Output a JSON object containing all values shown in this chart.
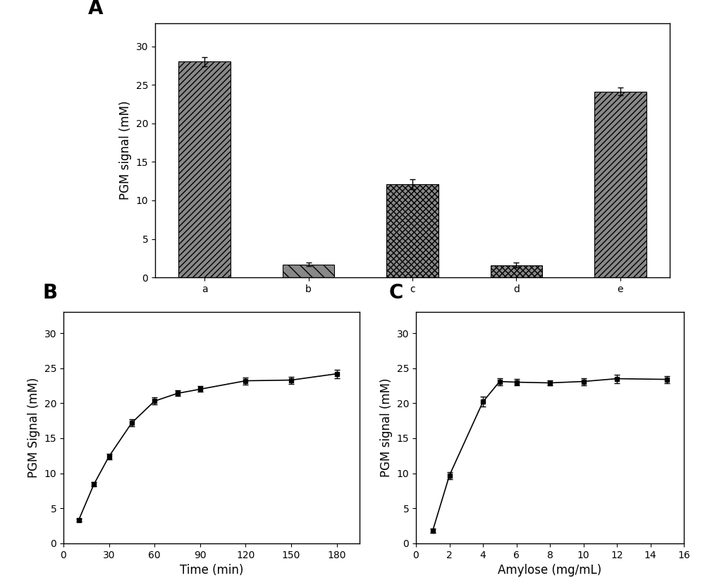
{
  "panel_A": {
    "categories": [
      "a",
      "b",
      "c",
      "d",
      "e"
    ],
    "values": [
      28.0,
      1.7,
      12.1,
      1.6,
      24.1
    ],
    "errors": [
      0.6,
      0.2,
      0.6,
      0.3,
      0.5
    ],
    "hatch_patterns": [
      "////",
      "\\\\",
      "xxxx",
      "xxxx",
      "////"
    ],
    "ylabel": "PGM signal (mM)",
    "ylim": [
      0,
      33
    ],
    "yticks": [
      0,
      5,
      10,
      15,
      20,
      25,
      30
    ],
    "label": "A"
  },
  "panel_B": {
    "x": [
      10,
      20,
      30,
      45,
      60,
      75,
      90,
      120,
      150,
      180
    ],
    "y": [
      3.3,
      8.4,
      12.4,
      17.2,
      20.3,
      21.4,
      22.0,
      23.2,
      23.3,
      24.2
    ],
    "errors": [
      0.2,
      0.3,
      0.4,
      0.5,
      0.5,
      0.4,
      0.4,
      0.5,
      0.5,
      0.6
    ],
    "xlabel": "Time (min)",
    "ylabel": "PGM Signal (mM)",
    "xlim": [
      0,
      195
    ],
    "ylim": [
      0,
      33
    ],
    "xticks": [
      0,
      30,
      60,
      90,
      120,
      150,
      180
    ],
    "yticks": [
      0,
      5,
      10,
      15,
      20,
      25,
      30
    ],
    "label": "B"
  },
  "panel_C": {
    "x": [
      1,
      2,
      4,
      5,
      6,
      8,
      10,
      12,
      15
    ],
    "y": [
      1.8,
      9.7,
      20.2,
      23.1,
      23.0,
      22.9,
      23.1,
      23.5,
      23.4
    ],
    "errors": [
      0.3,
      0.5,
      0.7,
      0.5,
      0.5,
      0.4,
      0.5,
      0.6,
      0.5
    ],
    "xlabel": "Amylose (mg/mL)",
    "ylabel": "PGM signal (mM)",
    "xlim": [
      0,
      16
    ],
    "ylim": [
      0,
      33
    ],
    "xticks": [
      0,
      2,
      4,
      6,
      8,
      10,
      12,
      14,
      16
    ],
    "yticks": [
      0,
      5,
      10,
      15,
      20,
      25,
      30
    ],
    "label": "C"
  },
  "bar_color": "#888888",
  "line_color": "#000000",
  "marker": "s",
  "markersize": 5,
  "linewidth": 1.2,
  "capsize": 3,
  "elinewidth": 1.0,
  "fontsize_label": 12,
  "fontsize_tick": 10,
  "fontsize_panel": 20,
  "background": "#ffffff"
}
